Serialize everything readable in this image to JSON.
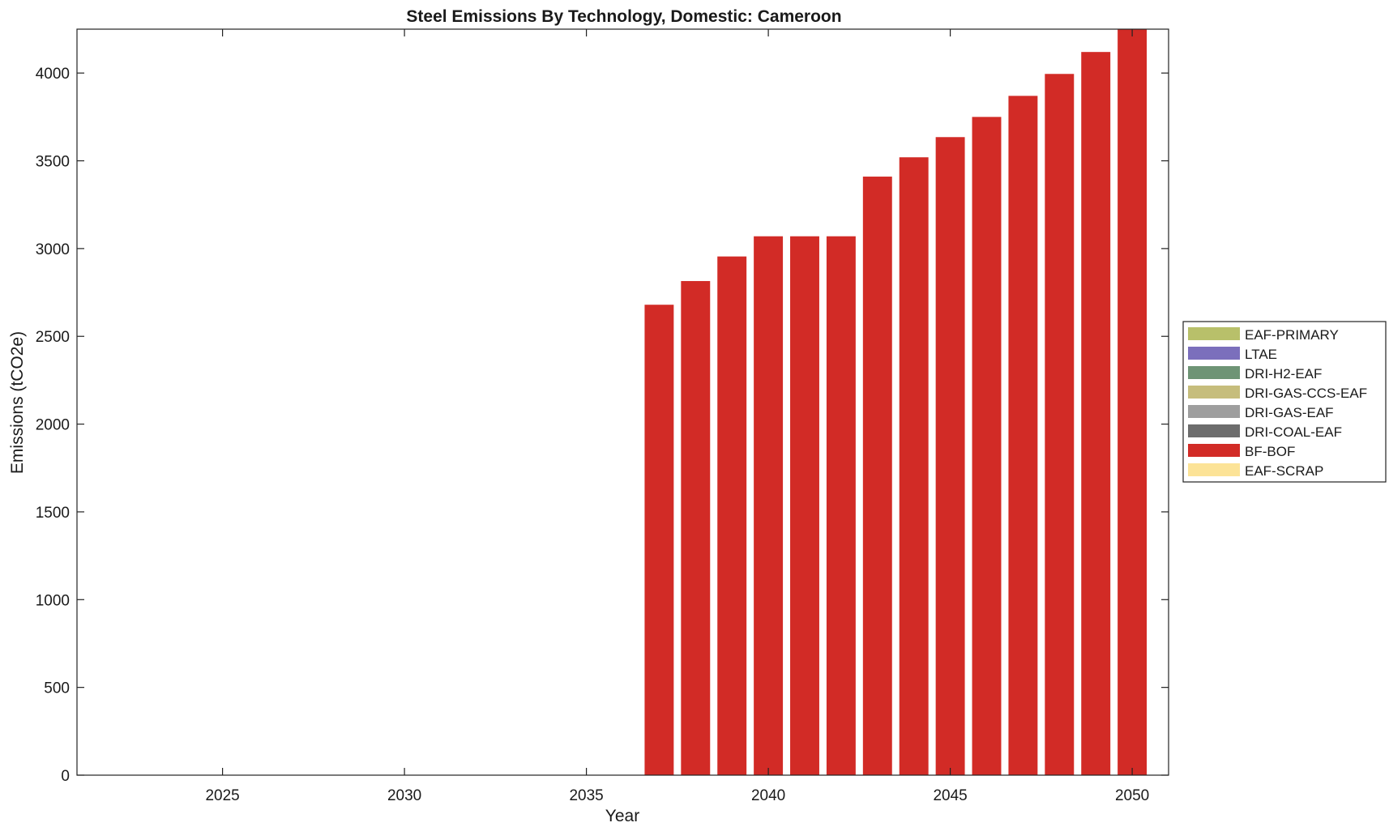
{
  "chart_data": {
    "type": "bar",
    "stacked": true,
    "title": "Steel Emissions By Technology, Domestic: Cameroon",
    "xlabel": "Year",
    "ylabel": "Emissions (tCO2e)",
    "xlim": [
      2021,
      2051
    ],
    "ylim": [
      0,
      4250
    ],
    "xticks": [
      2025,
      2030,
      2035,
      2040,
      2045,
      2050
    ],
    "yticks": [
      0,
      500,
      1000,
      1500,
      2000,
      2500,
      3000,
      3500,
      4000
    ],
    "grid": false,
    "legend_position": "right",
    "categories": [
      2022,
      2023,
      2024,
      2025,
      2026,
      2027,
      2028,
      2029,
      2030,
      2031,
      2032,
      2033,
      2034,
      2035,
      2036,
      2037,
      2038,
      2039,
      2040,
      2041,
      2042,
      2043,
      2044,
      2045,
      2046,
      2047,
      2048,
      2049,
      2050
    ],
    "series": [
      {
        "name": "EAF-PRIMARY",
        "color": "#b8c06a",
        "values": [
          0,
          0,
          0,
          0,
          0,
          0,
          0,
          0,
          0,
          0,
          0,
          0,
          0,
          0,
          0,
          0,
          0,
          0,
          0,
          0,
          0,
          0,
          0,
          0,
          0,
          0,
          0,
          0,
          0
        ]
      },
      {
        "name": "LTAE",
        "color": "#7b6fbc",
        "values": [
          0,
          0,
          0,
          0,
          0,
          0,
          0,
          0,
          0,
          0,
          0,
          0,
          0,
          0,
          0,
          0,
          0,
          0,
          0,
          0,
          0,
          0,
          0,
          0,
          0,
          0,
          0,
          0,
          0
        ]
      },
      {
        "name": "DRI-H2-EAF",
        "color": "#6e9475",
        "values": [
          0,
          0,
          0,
          0,
          0,
          0,
          0,
          0,
          0,
          0,
          0,
          0,
          0,
          0,
          0,
          0,
          0,
          0,
          0,
          0,
          0,
          0,
          0,
          0,
          0,
          0,
          0,
          0,
          0
        ]
      },
      {
        "name": "DRI-GAS-CCS-EAF",
        "color": "#c6bd7c",
        "values": [
          0,
          0,
          0,
          0,
          0,
          0,
          0,
          0,
          0,
          0,
          0,
          0,
          0,
          0,
          0,
          0,
          0,
          0,
          0,
          0,
          0,
          0,
          0,
          0,
          0,
          0,
          0,
          0,
          0
        ]
      },
      {
        "name": "DRI-GAS-EAF",
        "color": "#9e9e9e",
        "values": [
          0,
          0,
          0,
          0,
          0,
          0,
          0,
          0,
          0,
          0,
          0,
          0,
          0,
          0,
          0,
          0,
          0,
          0,
          0,
          0,
          0,
          0,
          0,
          0,
          0,
          0,
          0,
          0,
          0
        ]
      },
      {
        "name": "DRI-COAL-EAF",
        "color": "#6d6d6d",
        "values": [
          0,
          0,
          0,
          0,
          0,
          0,
          0,
          0,
          0,
          0,
          0,
          0,
          0,
          0,
          0,
          0,
          0,
          0,
          0,
          0,
          0,
          0,
          0,
          0,
          0,
          0,
          0,
          0,
          0
        ]
      },
      {
        "name": "BF-BOF",
        "color": "#d22b26",
        "values": [
          0,
          0,
          0,
          0,
          0,
          0,
          0,
          0,
          0,
          0,
          0,
          0,
          0,
          0,
          0,
          2680,
          2815,
          2955,
          3070,
          3070,
          3070,
          3410,
          3520,
          3635,
          3750,
          3870,
          3995,
          4120,
          4250
        ]
      },
      {
        "name": "EAF-SCRAP",
        "color": "#fce397",
        "values": [
          0,
          0,
          0,
          0,
          0,
          0,
          0,
          0,
          0,
          0,
          0,
          0,
          0,
          0,
          0,
          0,
          0,
          0,
          0,
          0,
          0,
          0,
          0,
          0,
          0,
          0,
          0,
          0,
          0
        ]
      }
    ]
  }
}
